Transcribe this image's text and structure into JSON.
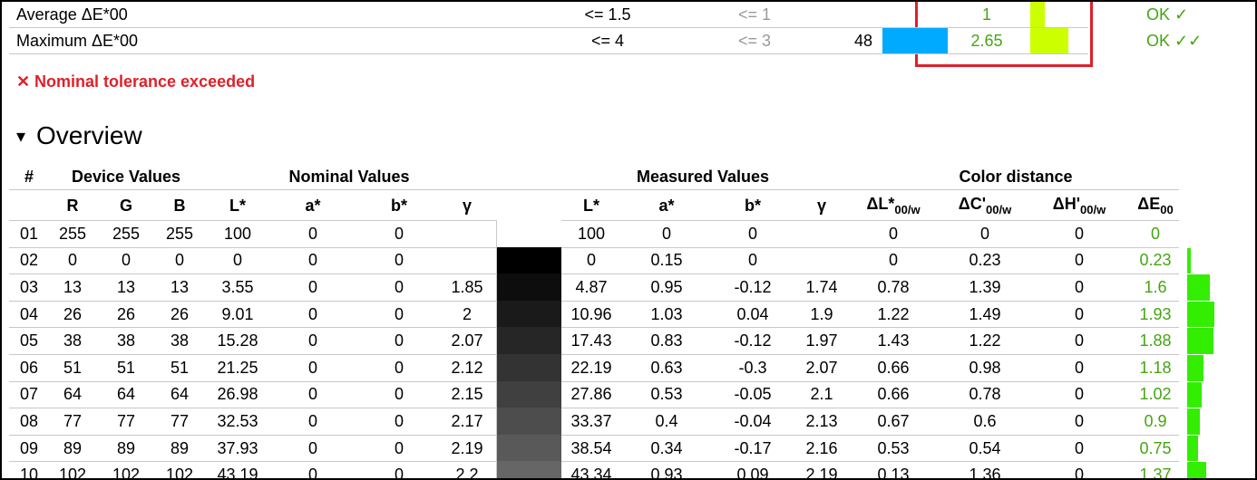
{
  "summary": [
    {
      "label": "Average ΔE*00",
      "nominal": "<= 1.5",
      "recommended": "<= 1",
      "value": 1,
      "result": "OK ✓"
    },
    {
      "label": "Maximum ΔE*00",
      "nominal": "<= 4",
      "recommended": "<= 3",
      "count": 48,
      "value": 2.65,
      "result": "OK ✓✓"
    }
  ],
  "message": {
    "icon": "✕",
    "text": "Nominal tolerance exceeded"
  },
  "section": {
    "arrow": "▾",
    "title": "Overview"
  },
  "table": {
    "groups": [
      "#",
      "Device Values",
      "Nominal Values",
      "Measured Values",
      "Color distance"
    ],
    "columns": [
      {
        "main": "R"
      },
      {
        "main": "G"
      },
      {
        "main": "B"
      },
      {
        "main": "L*"
      },
      {
        "main": "a*"
      },
      {
        "main": "b*"
      },
      {
        "main": "γ"
      },
      {
        "main": "L*"
      },
      {
        "main": "a*"
      },
      {
        "main": "b*"
      },
      {
        "main": "γ"
      },
      {
        "main": "ΔL*",
        "sub": "00/w"
      },
      {
        "main": "ΔC'",
        "sub": "00/w"
      },
      {
        "main": "ΔH'",
        "sub": "00/w"
      },
      {
        "main": "ΔE",
        "sub": "00"
      }
    ],
    "rows": [
      [
        "01",
        255,
        255,
        255,
        100,
        0,
        0,
        null,
        100,
        0,
        0,
        null,
        0,
        0,
        0,
        0
      ],
      [
        "02",
        0,
        0,
        0,
        0,
        0,
        0,
        null,
        0,
        0.15,
        0,
        null,
        0,
        0.23,
        0,
        0.23
      ],
      [
        "03",
        13,
        13,
        13,
        3.55,
        0,
        0,
        1.85,
        4.87,
        0.95,
        -0.12,
        1.74,
        0.78,
        1.39,
        0,
        1.6
      ],
      [
        "04",
        26,
        26,
        26,
        9.01,
        0,
        0,
        2,
        10.96,
        1.03,
        0.04,
        1.9,
        1.22,
        1.49,
        0,
        1.93
      ],
      [
        "05",
        38,
        38,
        38,
        15.28,
        0,
        0,
        2.07,
        17.43,
        0.83,
        -0.12,
        1.97,
        1.43,
        1.22,
        0,
        1.88
      ],
      [
        "06",
        51,
        51,
        51,
        21.25,
        0,
        0,
        2.12,
        22.19,
        0.63,
        -0.3,
        2.07,
        0.66,
        0.98,
        0,
        1.18
      ],
      [
        "07",
        64,
        64,
        64,
        26.98,
        0,
        0,
        2.15,
        27.86,
        0.53,
        -0.05,
        2.1,
        0.66,
        0.78,
        0,
        1.02
      ],
      [
        "08",
        77,
        77,
        77,
        32.53,
        0,
        0,
        2.17,
        33.37,
        0.4,
        -0.04,
        2.13,
        0.67,
        0.6,
        0,
        0.9
      ],
      [
        "09",
        89,
        89,
        89,
        37.93,
        0,
        0,
        2.19,
        38.54,
        0.34,
        -0.17,
        2.16,
        0.53,
        0.54,
        0,
        0.75
      ],
      [
        "10",
        102,
        102,
        102,
        43.19,
        0,
        0,
        2.2,
        43.34,
        0.93,
        0.09,
        2.19,
        0.13,
        1.36,
        0,
        1.37
      ]
    ]
  }
}
